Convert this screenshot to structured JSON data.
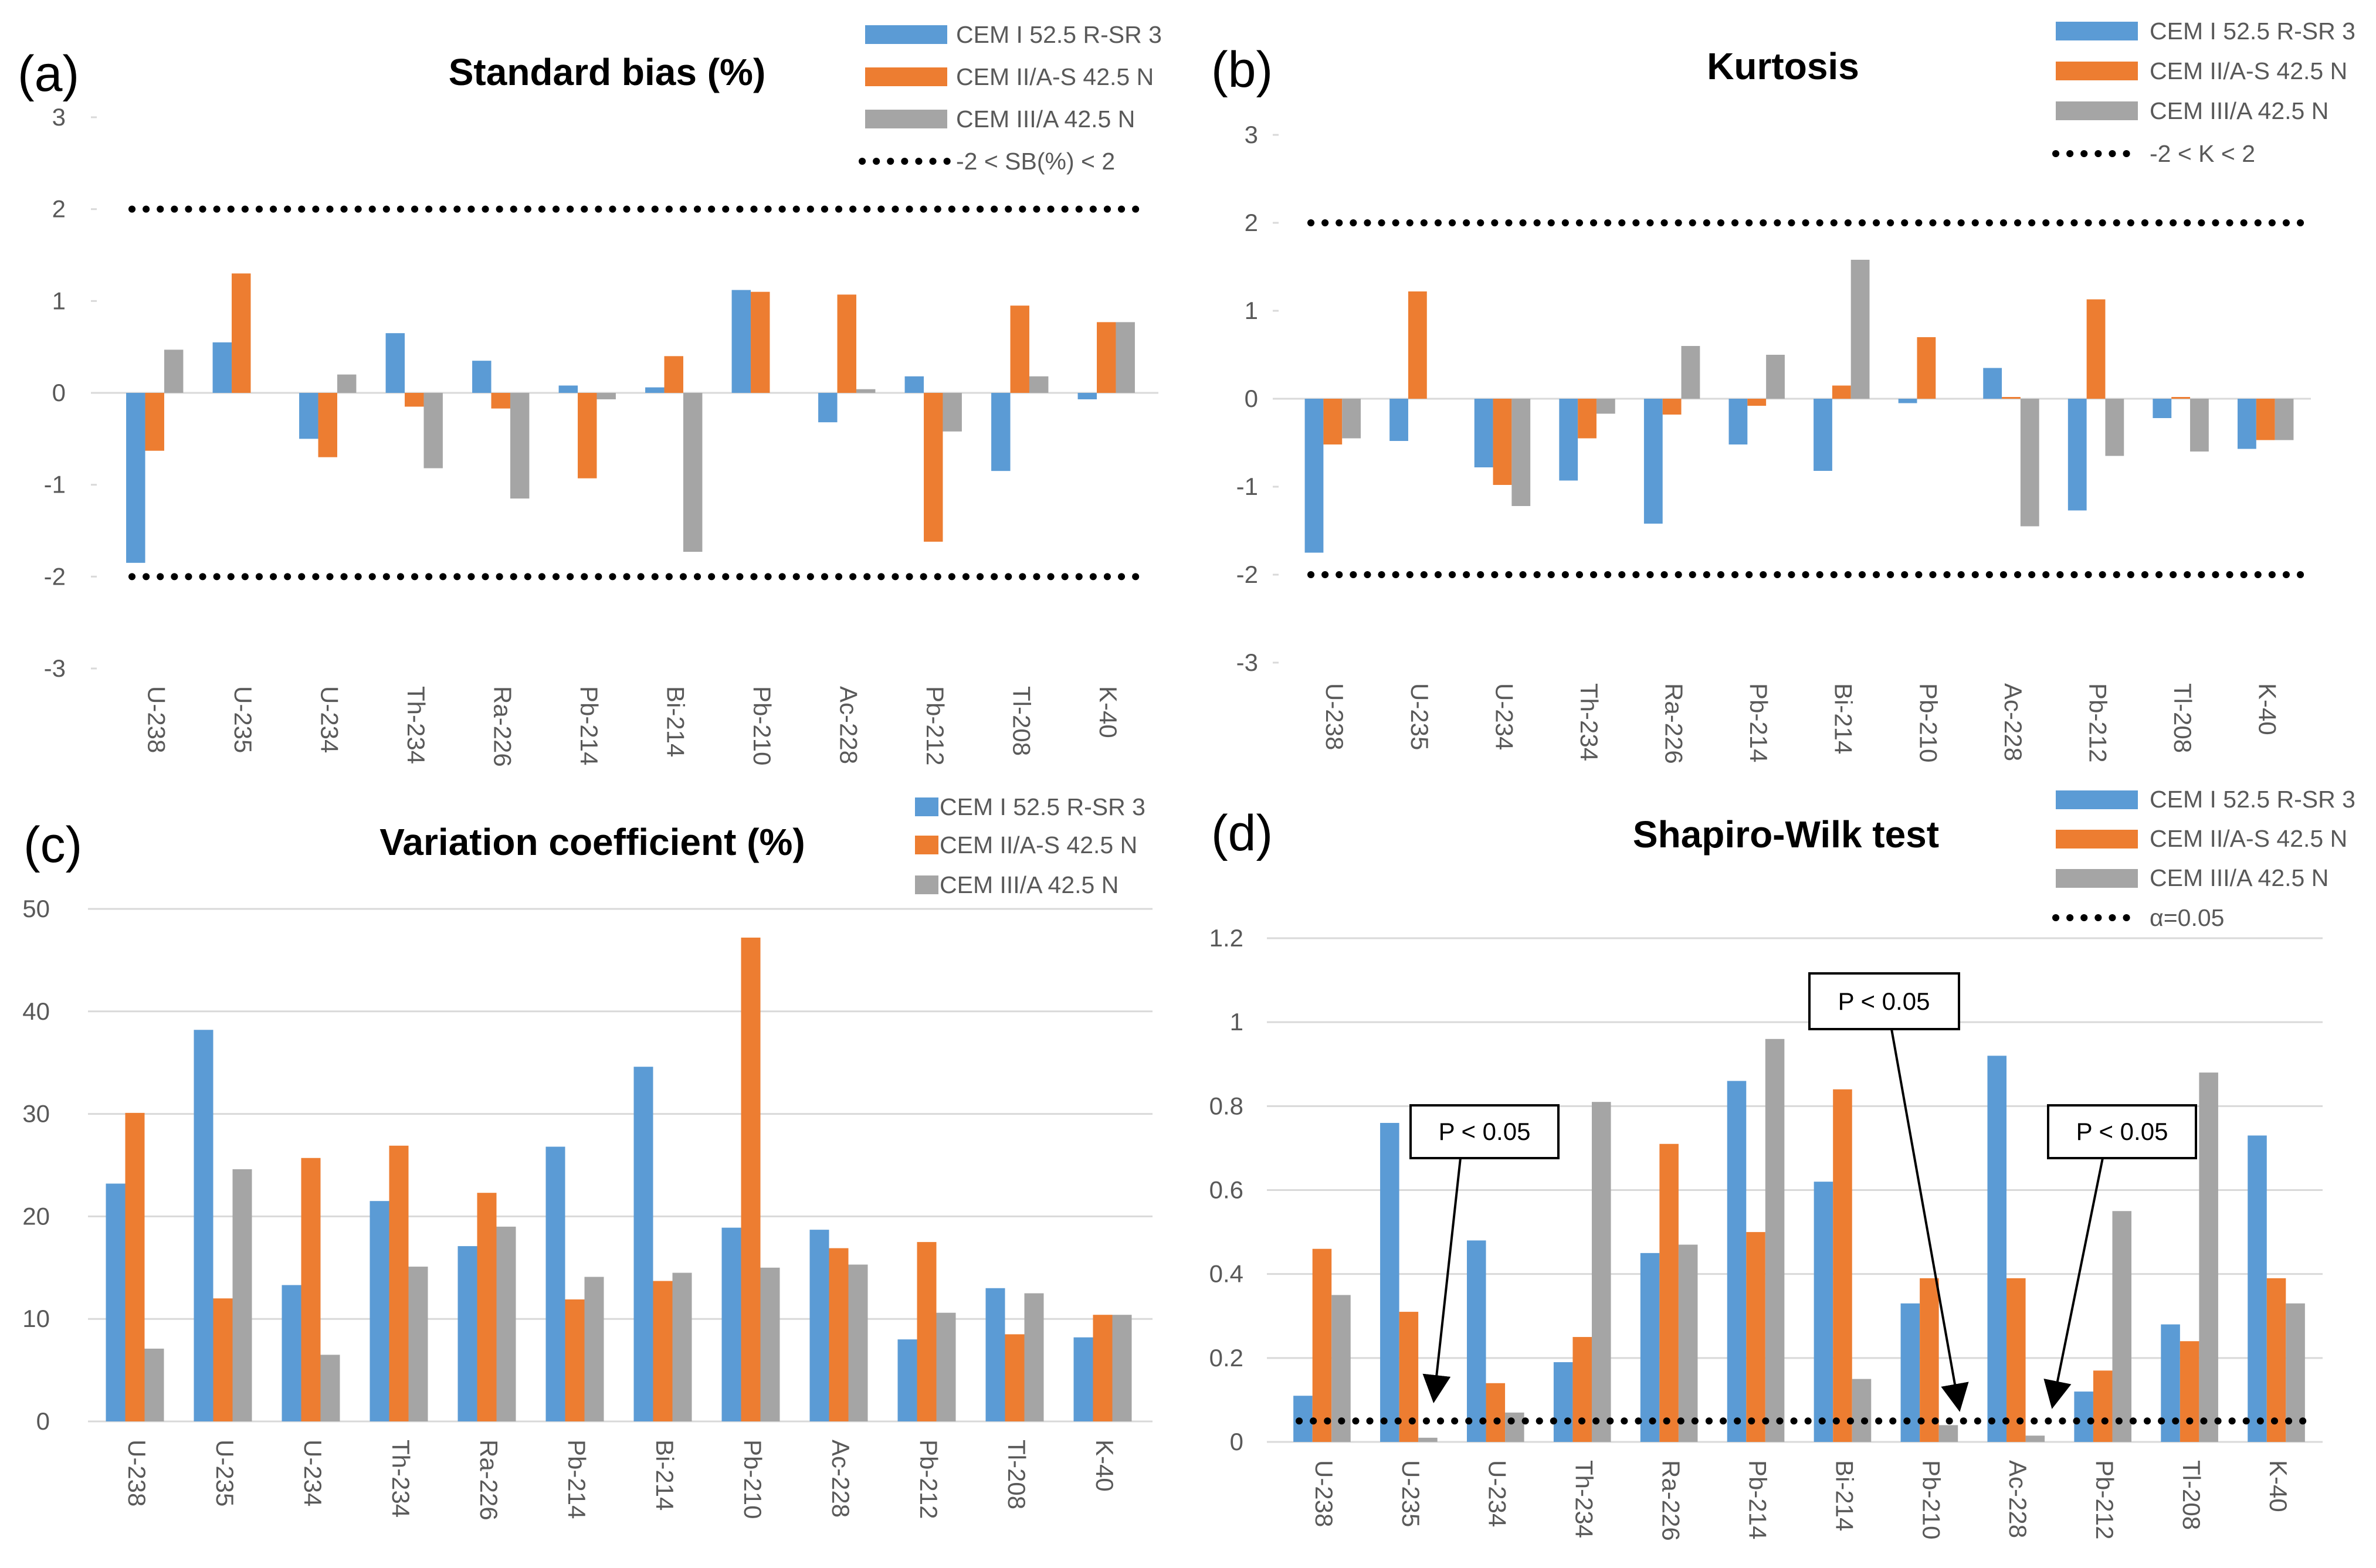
{
  "colors": {
    "series": [
      "#5b9bd5",
      "#ed7d31",
      "#a5a5a5"
    ],
    "threshold": "#000000",
    "grid": "#d9d9d9"
  },
  "chart_data": [
    {
      "id": "a",
      "type": "bar",
      "panel_label": "(a)",
      "title": "Standard bias (%)",
      "categories": [
        "U-238",
        "U-235",
        "U-234",
        "Th-234",
        "Ra-226",
        "Pb-214",
        "Bi-214",
        "Pb-210",
        "Ac-228",
        "Pb-212",
        "Tl-208",
        "K-40"
      ],
      "series": [
        {
          "name": "CEM I 52.5 R-SR 3",
          "values": [
            -1.85,
            0.55,
            -0.5,
            0.65,
            0.35,
            0.08,
            0.06,
            1.12,
            -0.32,
            0.18,
            -0.85,
            -0.07
          ]
        },
        {
          "name": "CEM II/A-S 42.5 N",
          "values": [
            -0.63,
            1.3,
            -0.7,
            -0.15,
            -0.17,
            -0.93,
            0.4,
            1.1,
            1.07,
            -1.62,
            0.95,
            0.77
          ]
        },
        {
          "name": "CEM III/A 42.5 N",
          "values": [
            0.47,
            0.0,
            0.2,
            -0.82,
            -1.15,
            -0.07,
            -1.73,
            0.0,
            0.04,
            -0.42,
            0.18,
            0.77
          ]
        }
      ],
      "threshold": {
        "name": "-2 < SB(%) < 2",
        "values": [
          -2,
          2
        ]
      },
      "yticks": [
        -3,
        -2,
        -1,
        0,
        1,
        2,
        3
      ],
      "ylim": [
        -3,
        3
      ],
      "grid": false,
      "legend": "top-right"
    },
    {
      "id": "b",
      "type": "bar",
      "panel_label": "(b)",
      "title": "Kurtosis",
      "categories": [
        "U-238",
        "U-235",
        "U-234",
        "Th-234",
        "Ra-226",
        "Pb-214",
        "Bi-214",
        "Pb-210",
        "Ac-228",
        "Pb-212",
        "Tl-208",
        "K-40"
      ],
      "series": [
        {
          "name": "CEM I 52.5 R-SR 3",
          "values": [
            -1.75,
            -0.48,
            -0.78,
            -0.93,
            -1.42,
            -0.52,
            -0.82,
            -0.05,
            0.35,
            -1.27,
            -0.22,
            -0.57
          ]
        },
        {
          "name": "CEM II/A-S 42.5 N",
          "values": [
            -0.52,
            1.22,
            -0.98,
            -0.45,
            -0.18,
            -0.08,
            0.15,
            0.7,
            0.02,
            1.13,
            0.02,
            -0.47
          ]
        },
        {
          "name": "CEM III/A 42.5 N",
          "values": [
            -0.45,
            0.0,
            -1.22,
            -0.17,
            0.6,
            0.5,
            1.58,
            0.0,
            -1.45,
            -0.65,
            -0.6,
            -0.47
          ]
        }
      ],
      "threshold": {
        "name": "-2 < K < 2",
        "values": [
          -2,
          2
        ]
      },
      "yticks": [
        -3,
        -2,
        -1,
        0,
        1,
        2,
        3
      ],
      "ylim": [
        -3,
        3
      ],
      "grid": false,
      "legend": "top-right"
    },
    {
      "id": "c",
      "type": "bar",
      "panel_label": "(c)",
      "title": "Variation coefficient (%)",
      "categories": [
        "U-238",
        "U-235",
        "U-234",
        "Th-234",
        "Ra-226",
        "Pb-214",
        "Bi-214",
        "Pb-210",
        "Ac-228",
        "Pb-212",
        "Tl-208",
        "K-40"
      ],
      "series": [
        {
          "name": "CEM I 52.5 R-SR 3",
          "values": [
            23.2,
            38.2,
            13.3,
            21.5,
            17.1,
            26.8,
            34.6,
            18.9,
            18.7,
            8.0,
            13.0,
            8.2
          ]
        },
        {
          "name": "CEM II/A-S 42.5 N",
          "values": [
            30.1,
            12.0,
            25.7,
            26.9,
            22.3,
            11.9,
            13.7,
            47.2,
            16.9,
            17.5,
            8.5,
            10.4
          ]
        },
        {
          "name": "CEM III/A 42.5 N",
          "values": [
            7.1,
            24.6,
            6.5,
            15.1,
            19.0,
            14.1,
            14.5,
            15.0,
            15.3,
            10.6,
            12.5,
            10.4
          ]
        }
      ],
      "yticks": [
        0,
        10,
        20,
        30,
        40,
        50
      ],
      "ylim": [
        0,
        50
      ],
      "grid": true,
      "legend": "top-right"
    },
    {
      "id": "d",
      "type": "bar",
      "panel_label": "(d)",
      "title": "Shapiro-Wilk test",
      "categories": [
        "U-238",
        "U-235",
        "U-234",
        "Th-234",
        "Ra-226",
        "Pb-214",
        "Bi-214",
        "Pb-210",
        "Ac-228",
        "Pb-212",
        "Tl-208",
        "K-40"
      ],
      "series": [
        {
          "name": "CEM I 52.5 R-SR 3",
          "values": [
            0.11,
            0.76,
            0.48,
            0.19,
            0.45,
            0.86,
            0.62,
            0.33,
            0.92,
            0.12,
            0.28,
            0.73
          ]
        },
        {
          "name": "CEM II/A-S 42.5 N",
          "values": [
            0.46,
            0.31,
            0.14,
            0.25,
            0.71,
            0.5,
            0.84,
            0.39,
            0.39,
            0.17,
            0.24,
            0.39
          ]
        },
        {
          "name": "CEM III/A 42.5 N",
          "values": [
            0.35,
            0.01,
            0.07,
            0.81,
            0.47,
            0.96,
            0.15,
            0.04,
            0.015,
            0.55,
            0.88,
            0.33
          ]
        }
      ],
      "threshold": {
        "name": "α=0.05",
        "values": [
          0.05
        ]
      },
      "yticks": [
        "0",
        "0.2",
        "0.4",
        "0.6",
        "0.8",
        "1",
        "1.2"
      ],
      "ylim": [
        0,
        1.2
      ],
      "grid": true,
      "legend": "top-right",
      "annotations": [
        {
          "text": "P < 0.05",
          "category": "U-235"
        },
        {
          "text": "P < 0.05",
          "category": "Pb-210"
        },
        {
          "text": "P < 0.05",
          "category": "Ac-228"
        }
      ]
    }
  ]
}
